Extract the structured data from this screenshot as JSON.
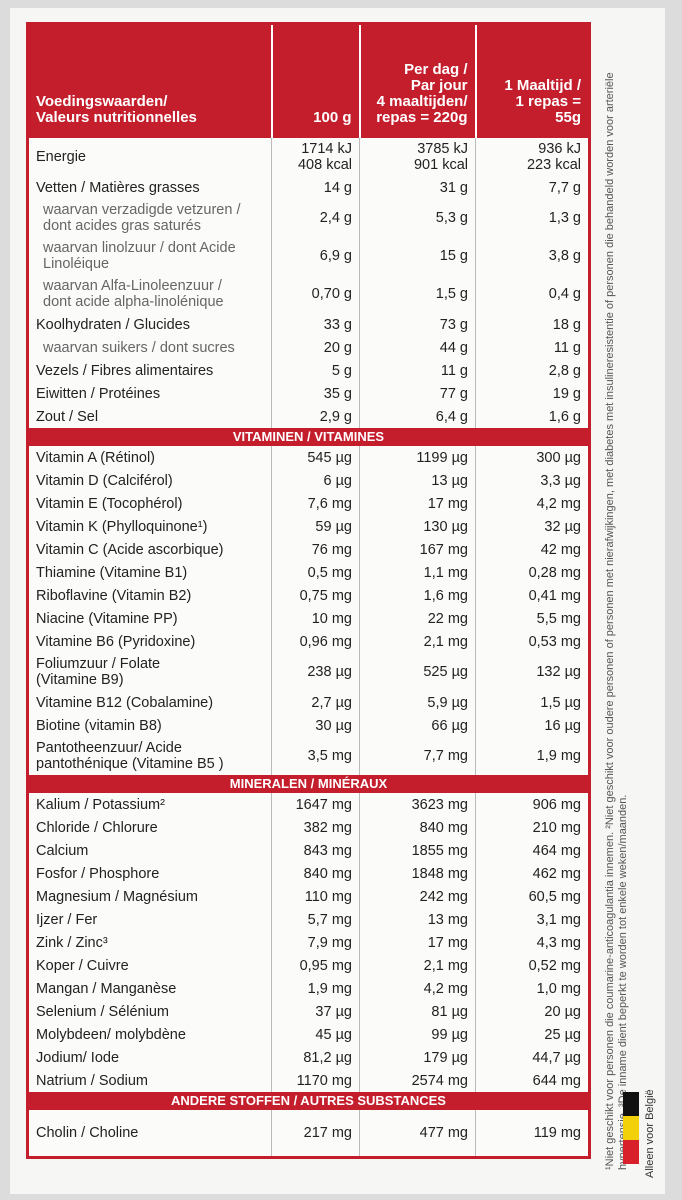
{
  "table": {
    "header": [
      "Voedingswaarden/\nValeurs nutritionnelles",
      "100 g",
      "Per dag /\nPar jour\n4 maaltijden/\nrepas = 220g",
      "1 Maaltijd /\n1 repas =\n55g"
    ],
    "sections": [
      {
        "rows": [
          {
            "label": "Energie",
            "values": [
              "1714 kJ\n408 kcal",
              "3785 kJ\n901 kcal",
              "936 kJ\n223 kcal"
            ]
          },
          {
            "label": "Vetten / Matières grasses",
            "values": [
              "14 g",
              "31 g",
              "7,7 g"
            ]
          },
          {
            "label": "waarvan verzadigde vetzuren /\ndont acides gras saturés",
            "sub": true,
            "values": [
              "2,4 g",
              "5,3 g",
              "1,3 g"
            ]
          },
          {
            "label": "waarvan linolzuur / dont Acide\nLinoléique",
            "sub": true,
            "values": [
              "6,9 g",
              "15 g",
              "3,8 g"
            ]
          },
          {
            "label": "waarvan Alfa-Linoleenzuur /\ndont acide alpha-linolénique",
            "sub": true,
            "values": [
              "0,70 g",
              "1,5 g",
              "0,4 g"
            ]
          },
          {
            "label": "Koolhydraten / Glucides",
            "values": [
              "33 g",
              "73 g",
              "18 g"
            ]
          },
          {
            "label": "waarvan suikers / dont sucres",
            "sub": true,
            "values": [
              "20 g",
              "44 g",
              "11 g"
            ]
          },
          {
            "label": "Vezels / Fibres alimentaires",
            "values": [
              "5 g",
              "11 g",
              "2,8 g"
            ]
          },
          {
            "label": "Eiwitten / Protéines",
            "values": [
              "35 g",
              "77 g",
              "19 g"
            ]
          },
          {
            "label": "Zout / Sel",
            "values": [
              "2,9 g",
              "6,4 g",
              "1,6 g"
            ]
          }
        ]
      },
      {
        "title": "VITAMINEN / VITAMINES",
        "rows": [
          {
            "label": "Vitamin A (Rétinol)",
            "values": [
              "545 µg",
              "1199 µg",
              "300 µg"
            ]
          },
          {
            "label": "Vitamin D (Calciférol)",
            "values": [
              "6 µg",
              "13 µg",
              "3,3 µg"
            ]
          },
          {
            "label": "Vitamin E (Tocophérol)",
            "values": [
              "7,6 mg",
              "17 mg",
              "4,2 mg"
            ]
          },
          {
            "label": "Vitamin K (Phylloquinone¹)",
            "values": [
              "59 µg",
              "130 µg",
              "32 µg"
            ]
          },
          {
            "label": "Vitamin C (Acide ascorbique)",
            "values": [
              "76 mg",
              "167 mg",
              "42 mg"
            ]
          },
          {
            "label": "Thiamine (Vitamine B1)",
            "values": [
              "0,5 mg",
              "1,1 mg",
              "0,28 mg"
            ]
          },
          {
            "label": "Riboflavine (Vitamin B2)",
            "values": [
              "0,75 mg",
              "1,6 mg",
              "0,41 mg"
            ]
          },
          {
            "label": "Niacine (Vitamine PP)",
            "values": [
              "10 mg",
              "22 mg",
              "5,5 mg"
            ]
          },
          {
            "label": "Vitamine B6 (Pyridoxine)",
            "values": [
              "0,96 mg",
              "2,1 mg",
              "0,53 mg"
            ]
          },
          {
            "label": "Foliumzuur / Folate\n(Vitamine B9)",
            "values": [
              "238 µg",
              "525 µg",
              "132 µg"
            ]
          },
          {
            "label": "Vitamine B12 (Cobalamine)",
            "values": [
              "2,7 µg",
              "5,9 µg",
              "1,5 µg"
            ]
          },
          {
            "label": "Biotine (vitamin B8)",
            "values": [
              "30 µg",
              "66 µg",
              "16 µg"
            ]
          },
          {
            "label": "Pantotheenzuur/ Acide\npantothénique (Vitamine B5 )",
            "values": [
              "3,5 mg",
              "7,7 mg",
              "1,9 mg"
            ]
          }
        ]
      },
      {
        "title": "MINERALEN / MINÉRAUX",
        "rows": [
          {
            "label": "Kalium / Potassium²",
            "values": [
              "1647 mg",
              "3623 mg",
              "906 mg"
            ]
          },
          {
            "label": "Chloride / Chlorure",
            "values": [
              "382 mg",
              "840 mg",
              "210 mg"
            ]
          },
          {
            "label": "Calcium",
            "values": [
              "843 mg",
              "1855 mg",
              "464 mg"
            ]
          },
          {
            "label": "Fosfor / Phosphore",
            "values": [
              "840 mg",
              "1848 mg",
              "462 mg"
            ]
          },
          {
            "label": "Magnesium / Magnésium",
            "values": [
              "110 mg",
              "242 mg",
              "60,5 mg"
            ]
          },
          {
            "label": "Ijzer / Fer",
            "values": [
              "5,7 mg",
              "13 mg",
              "3,1 mg"
            ]
          },
          {
            "label": "Zink / Zinc³",
            "values": [
              "7,9 mg",
              "17 mg",
              "4,3 mg"
            ]
          },
          {
            "label": "Koper / Cuivre",
            "values": [
              "0,95 mg",
              "2,1 mg",
              "0,52 mg"
            ]
          },
          {
            "label": "Mangan / Manganèse",
            "values": [
              "1,9 mg",
              "4,2 mg",
              "1,0 mg"
            ]
          },
          {
            "label": "Selenium / Sélénium",
            "values": [
              "37 µg",
              "81 µg",
              "20 µg"
            ]
          },
          {
            "label": "Molybdeen/ molybdène",
            "values": [
              "45 µg",
              "99 µg",
              "25 µg"
            ]
          },
          {
            "label": "Jodium/ Iode",
            "values": [
              "81,2 µg",
              "179 µg",
              "44,7 µg"
            ]
          },
          {
            "label": "Natrium / Sodium",
            "values": [
              "1170 mg",
              "2574 mg",
              "644 mg"
            ]
          }
        ]
      },
      {
        "title": "ANDERE STOFFEN / AUTRES SUBSTANCES",
        "rows": [
          {
            "label": "Cholin / Choline",
            "values": [
              "217 mg",
              "477 mg",
              "119 mg"
            ]
          }
        ]
      }
    ]
  },
  "side_note": "¹Niet geschikt voor personen die coumarine-anticoagulantia innemen. ²Niet geschikt voor oudere personen of personen met nierafwijkingen, met diabetes met insulineresistentie of personen die behandeld worden voor arteriële hypertensie. ³De inname dient beperkt te worden tot enkele weken/maanden.",
  "flag_label": "Alleen voor België"
}
